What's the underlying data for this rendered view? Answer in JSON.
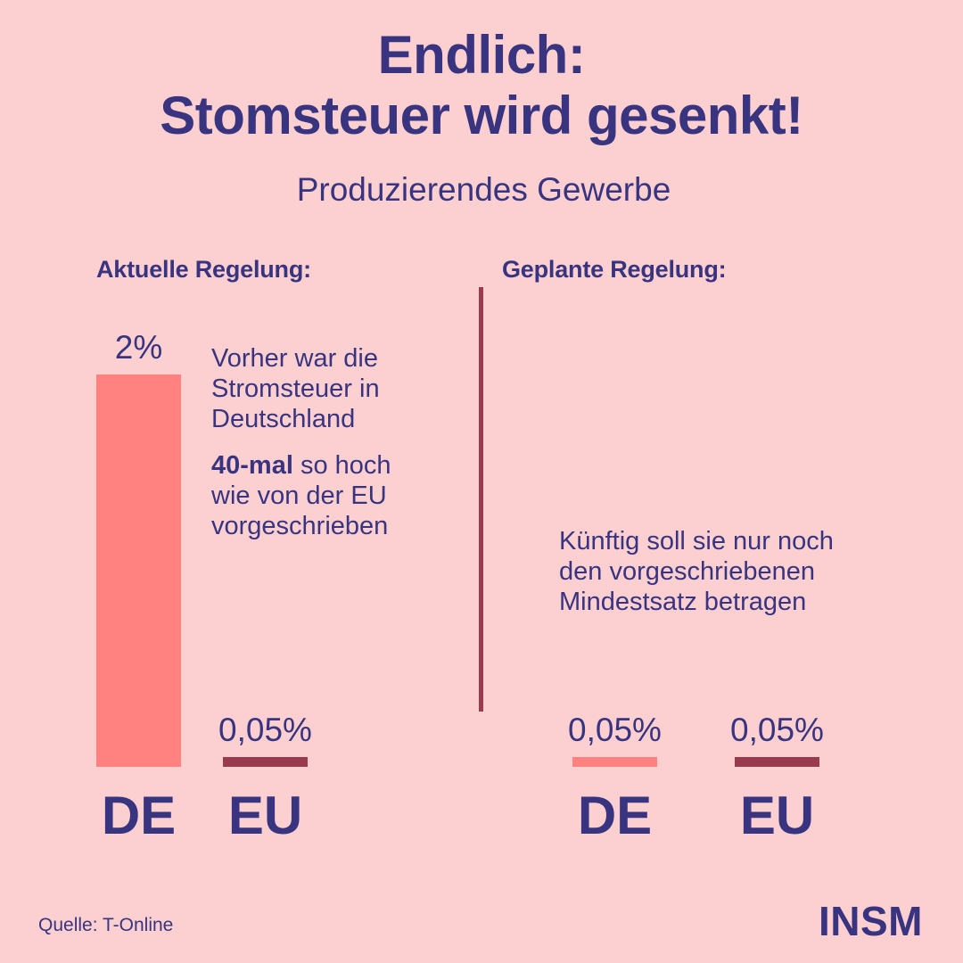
{
  "title": {
    "line1": "Endlich:",
    "line2": "Stomsteuer wird gesenkt!"
  },
  "subtitle": "Produzierendes Gewerbe",
  "colors": {
    "background": "#fccfd0",
    "text": "#383480",
    "de_bar": "#ff8280",
    "eu_bar": "#9a3a4e",
    "divider": "#9a3a4e"
  },
  "chart_data": [
    {
      "type": "bar",
      "title": "Aktuelle Regelung:",
      "categories": [
        "DE",
        "EU"
      ],
      "values": [
        2,
        0.05
      ],
      "value_labels": [
        "2%",
        "0,05%"
      ],
      "unit": "%",
      "ylim": [
        0,
        2
      ],
      "bar_colors": [
        "#ff8280",
        "#9a3a4e"
      ],
      "annotation": {
        "line1": "Vorher war die",
        "line2": "Stromsteuer in",
        "line3": "Deutschland",
        "bold": "40-mal",
        "line4_rest": " so hoch",
        "line5": "wie von der EU",
        "line6": "vorgeschrieben"
      }
    },
    {
      "type": "bar",
      "title": "Geplante Regelung:",
      "categories": [
        "DE",
        "EU"
      ],
      "values": [
        0.05,
        0.05
      ],
      "value_labels": [
        "0,05%",
        "0,05%"
      ],
      "unit": "%",
      "ylim": [
        0,
        2
      ],
      "bar_colors": [
        "#ff8280",
        "#9a3a4e"
      ],
      "annotation": {
        "line1": "Künftig soll sie nur noch",
        "line2": "den vorgeschriebenen",
        "line3": "Mindestsatz betragen"
      }
    }
  ],
  "footer": {
    "source": "Quelle: T-Online",
    "logo": "INSM"
  }
}
